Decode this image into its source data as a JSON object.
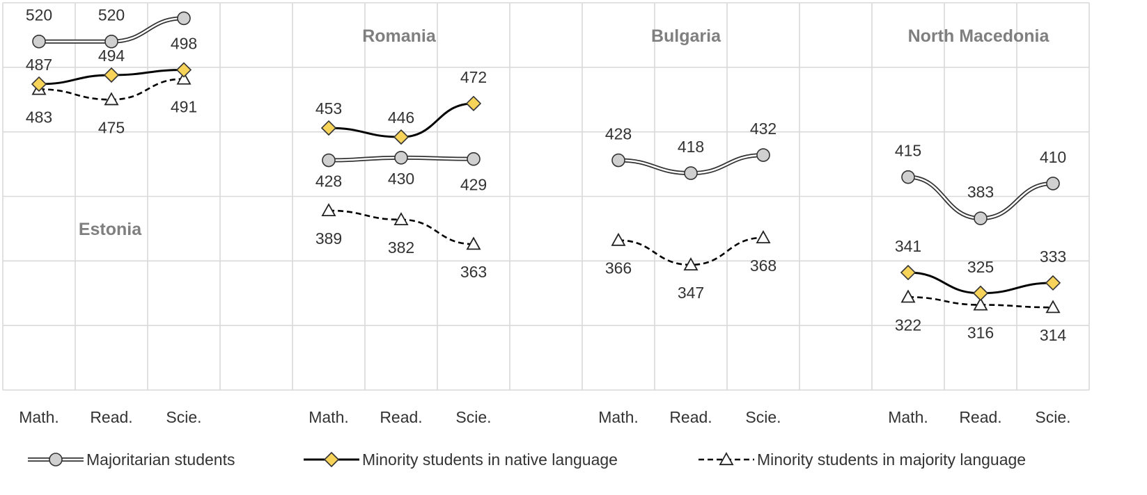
{
  "chart_data": {
    "type": "line",
    "grid": true,
    "ylim": [
      250,
      550
    ],
    "categories": [
      "Math.",
      "Read.",
      "Scie."
    ],
    "panels": [
      {
        "title": "Estonia",
        "series": [
          {
            "name": "Majoritarian students",
            "values": [
              520,
              520,
              538
            ]
          },
          {
            "name": "Minority students in native language",
            "values": [
              487,
              494,
              498
            ]
          },
          {
            "name": "Minority students in majority language",
            "values": [
              483,
              475,
              491
            ]
          }
        ]
      },
      {
        "title": "Romania",
        "series": [
          {
            "name": "Majoritarian students",
            "values": [
              428,
              430,
              429
            ]
          },
          {
            "name": "Minority students in native language",
            "values": [
              453,
              446,
              472
            ]
          },
          {
            "name": "Minority students in majority language",
            "values": [
              389,
              382,
              363
            ]
          }
        ]
      },
      {
        "title": "Bulgaria",
        "series": [
          {
            "name": "Majoritarian students",
            "values": [
              428,
              418,
              432
            ]
          },
          {
            "name": "Minority students in majority language",
            "values": [
              366,
              347,
              368
            ]
          }
        ]
      },
      {
        "title": "North Macedonia",
        "series": [
          {
            "name": "Majoritarian students",
            "values": [
              415,
              383,
              410
            ]
          },
          {
            "name": "Minority students in native language",
            "values": [
              341,
              325,
              333
            ]
          },
          {
            "name": "Minority students in majority language",
            "values": [
              322,
              316,
              314
            ]
          }
        ]
      }
    ],
    "legend": {
      "position": "bottom",
      "items": [
        "Majoritarian students",
        "Minority students in native language",
        "Minority students in majority language"
      ]
    },
    "colors": {
      "majoritarian_marker": "#d0d0d0",
      "native_marker": "#f7d35a",
      "line": "#000000",
      "grid": "#d9d9d9"
    }
  }
}
